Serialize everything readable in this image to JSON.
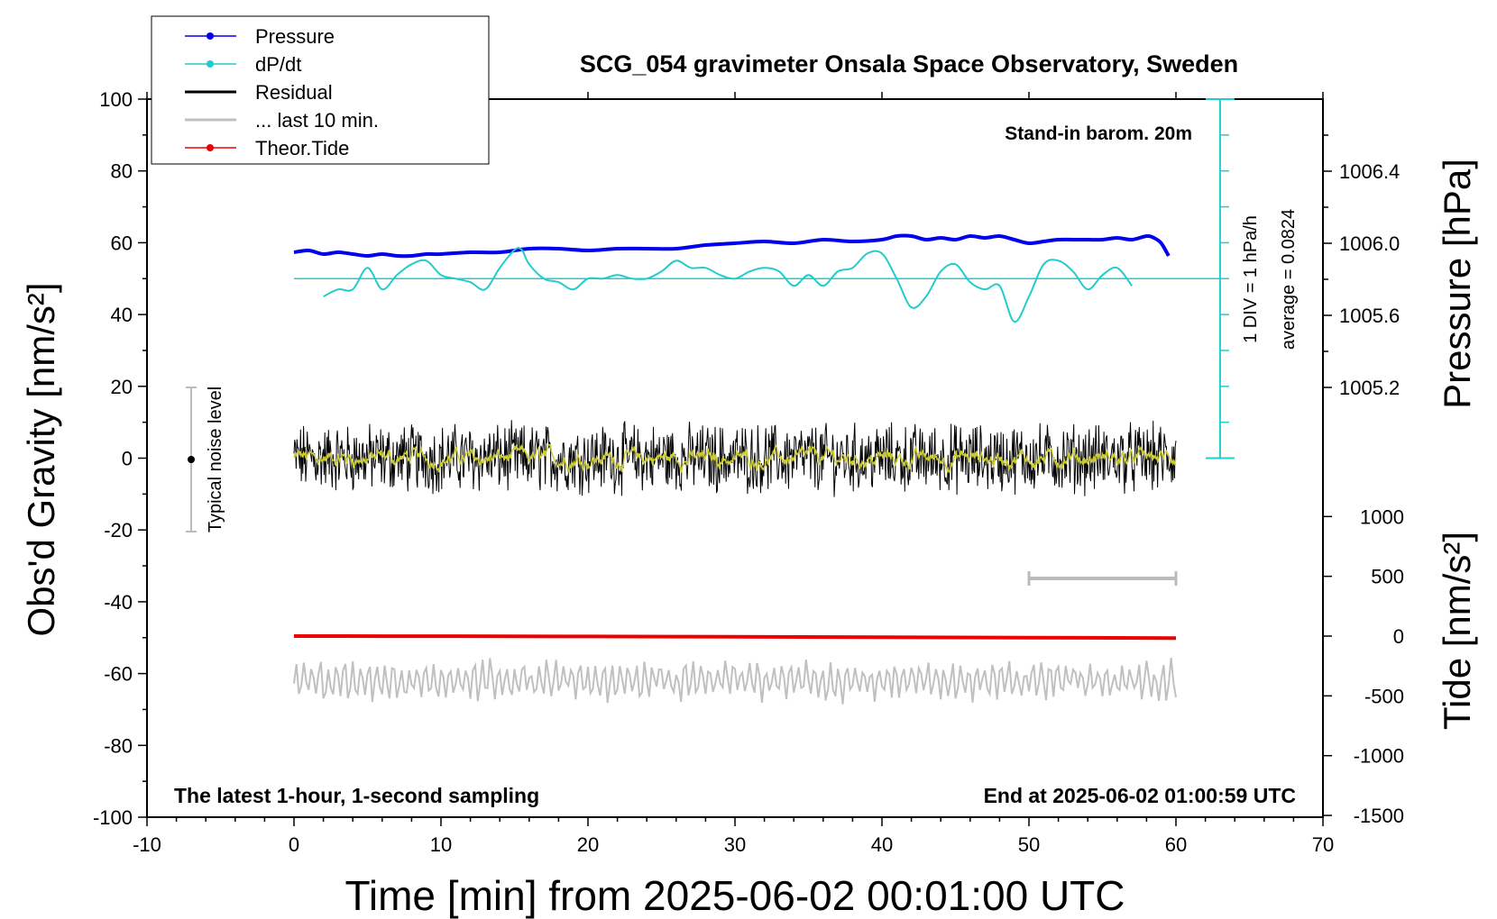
{
  "chart_data": {
    "type": "line",
    "title": "SCG_054 gravimeter Onsala Space Observatory, Sweden",
    "xlabel": "Time [min] from 2025-06-02 00:01:00 UTC",
    "ylabel_left": "Obs'd Gravity [nm/s²]",
    "ylabel_right_top": "Pressure [hPa]",
    "ylabel_right_bottom": "Tide [nm/s²]",
    "xlim": [
      -10,
      70
    ],
    "ylim": [
      -100,
      100
    ],
    "pressure_lim": [
      1004.6,
      1006.6
    ],
    "tide_lim": [
      -1500,
      1500
    ],
    "x_ticks": [
      "-10",
      "0",
      "10",
      "20",
      "30",
      "40",
      "50",
      "60",
      "70"
    ],
    "y_ticks": [
      "100",
      "80",
      "60",
      "40",
      "20",
      "0",
      "-20",
      "-40",
      "-60",
      "-80",
      "-100"
    ],
    "pressure_ticks": [
      "1006.4",
      "1006.0",
      "1005.6",
      "1005.2"
    ],
    "tide_ticks": [
      "1000",
      "500",
      "0",
      "-500",
      "-1000",
      "-1500"
    ],
    "legend": [
      "Pressure",
      "dP/dt",
      "Residual",
      "... last 10 min.",
      "Theor.Tide"
    ],
    "annotations": {
      "barometer": "Stand-in barom. 20m",
      "latest": "The latest 1-hour, 1-second sampling",
      "end": "End at 2025-06-02 01:00:59 UTC",
      "div": "1 DIV = 1 hPa/h",
      "average": "average = 0.0824",
      "noise": "Typical noise level"
    },
    "series": [
      {
        "name": "Pressure",
        "color": "#0000ee",
        "axis": "pressure",
        "x": [
          0,
          1,
          2,
          3,
          4,
          5,
          6,
          7,
          8,
          9,
          10,
          12,
          14,
          16,
          18,
          20,
          22,
          24,
          26,
          28,
          30,
          32,
          34,
          36,
          38,
          40,
          41,
          42,
          43,
          44,
          45,
          46,
          47,
          48,
          49,
          50,
          51,
          52,
          53,
          54,
          55,
          56,
          57,
          58,
          58.5,
          59,
          59.5
        ],
        "values": [
          1005.95,
          1005.96,
          1005.94,
          1005.95,
          1005.94,
          1005.93,
          1005.94,
          1005.93,
          1005.93,
          1005.94,
          1005.94,
          1005.95,
          1005.95,
          1005.97,
          1005.97,
          1005.96,
          1005.97,
          1005.97,
          1005.97,
          1005.99,
          1006.0,
          1006.01,
          1006.0,
          1006.02,
          1006.01,
          1006.02,
          1006.04,
          1006.04,
          1006.02,
          1006.03,
          1006.02,
          1006.04,
          1006.03,
          1006.04,
          1006.02,
          1006.0,
          1006.01,
          1006.02,
          1006.02,
          1006.02,
          1006.02,
          1006.03,
          1006.02,
          1006.04,
          1006.03,
          1006.0,
          1005.93
        ]
      },
      {
        "name": "dP/dt",
        "color": "#22cccc",
        "x": [
          2,
          3,
          4,
          5,
          6,
          7,
          8,
          9,
          10,
          11,
          12,
          13,
          14,
          15,
          15.5,
          16,
          17,
          18,
          19,
          20,
          21,
          22,
          23,
          24,
          25,
          26,
          27,
          28,
          29,
          30,
          31,
          32,
          33,
          34,
          35,
          36,
          37,
          38,
          39,
          40,
          41,
          42,
          43,
          44,
          45,
          46,
          47,
          48,
          49,
          50,
          51,
          52,
          53,
          54,
          55,
          56,
          57
        ],
        "values": [
          45,
          47,
          47,
          53,
          47,
          51,
          54,
          55,
          51,
          50,
          49,
          47,
          53,
          58,
          58,
          54,
          50,
          49,
          47,
          50,
          50,
          51,
          50,
          50,
          52,
          55,
          53,
          53,
          51,
          50,
          52,
          53,
          52,
          48,
          51,
          48,
          52,
          53,
          57,
          57,
          50,
          42,
          45,
          52,
          54,
          49,
          47,
          48,
          38,
          45,
          54,
          55,
          52,
          47,
          51,
          53,
          48
        ]
      },
      {
        "name": "Residual",
        "color": "#000000"
      },
      {
        "name": "... last 10 min.",
        "color": "#c0c0c0"
      },
      {
        "name": "Theor.Tide",
        "color": "#ee0000",
        "axis": "tide",
        "x": [
          0,
          10,
          20,
          30,
          40,
          50,
          60
        ],
        "values": [
          0,
          -1,
          -3,
          -6,
          -9,
          -13,
          -17
        ]
      }
    ]
  }
}
